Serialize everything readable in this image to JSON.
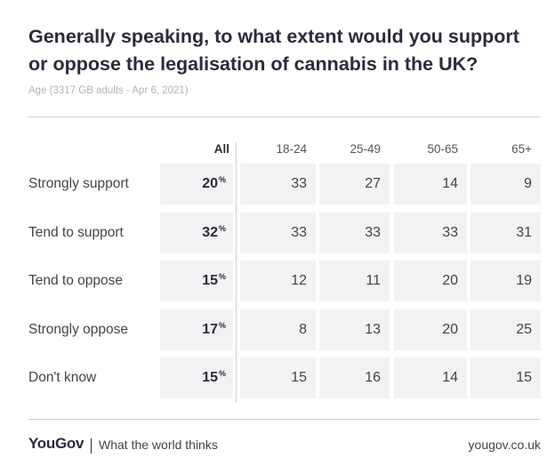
{
  "chart_data": {
    "type": "table",
    "title": "Generally speaking, to what extent would you support or oppose the legalisation of cannabis in the UK?",
    "subtitle": "Age (3317 GB adults - Apr 6, 2021)",
    "columns": [
      "All",
      "18-24",
      "25-49",
      "50-65",
      "65+"
    ],
    "percent_sign": "%",
    "rows": [
      {
        "label": "Strongly support",
        "all": "20",
        "values": [
          "33",
          "27",
          "14",
          "9"
        ]
      },
      {
        "label": "Tend to support",
        "all": "32",
        "values": [
          "33",
          "33",
          "33",
          "31"
        ]
      },
      {
        "label": "Tend to oppose",
        "all": "15",
        "values": [
          "12",
          "11",
          "20",
          "19"
        ]
      },
      {
        "label": "Strongly oppose",
        "all": "17",
        "values": [
          "8",
          "13",
          "20",
          "25"
        ]
      },
      {
        "label": "Don't know",
        "all": "15",
        "values": [
          "15",
          "16",
          "14",
          "15"
        ]
      }
    ]
  },
  "footer": {
    "brand": "YouGov",
    "tagline": "What the world thinks",
    "site": "yougov.co.uk"
  },
  "colors": {
    "cell_background": "#f2f2f4",
    "title": "#2b2b3b",
    "subtitle": "#b3b3b3",
    "rule": "#cfcfcf"
  }
}
